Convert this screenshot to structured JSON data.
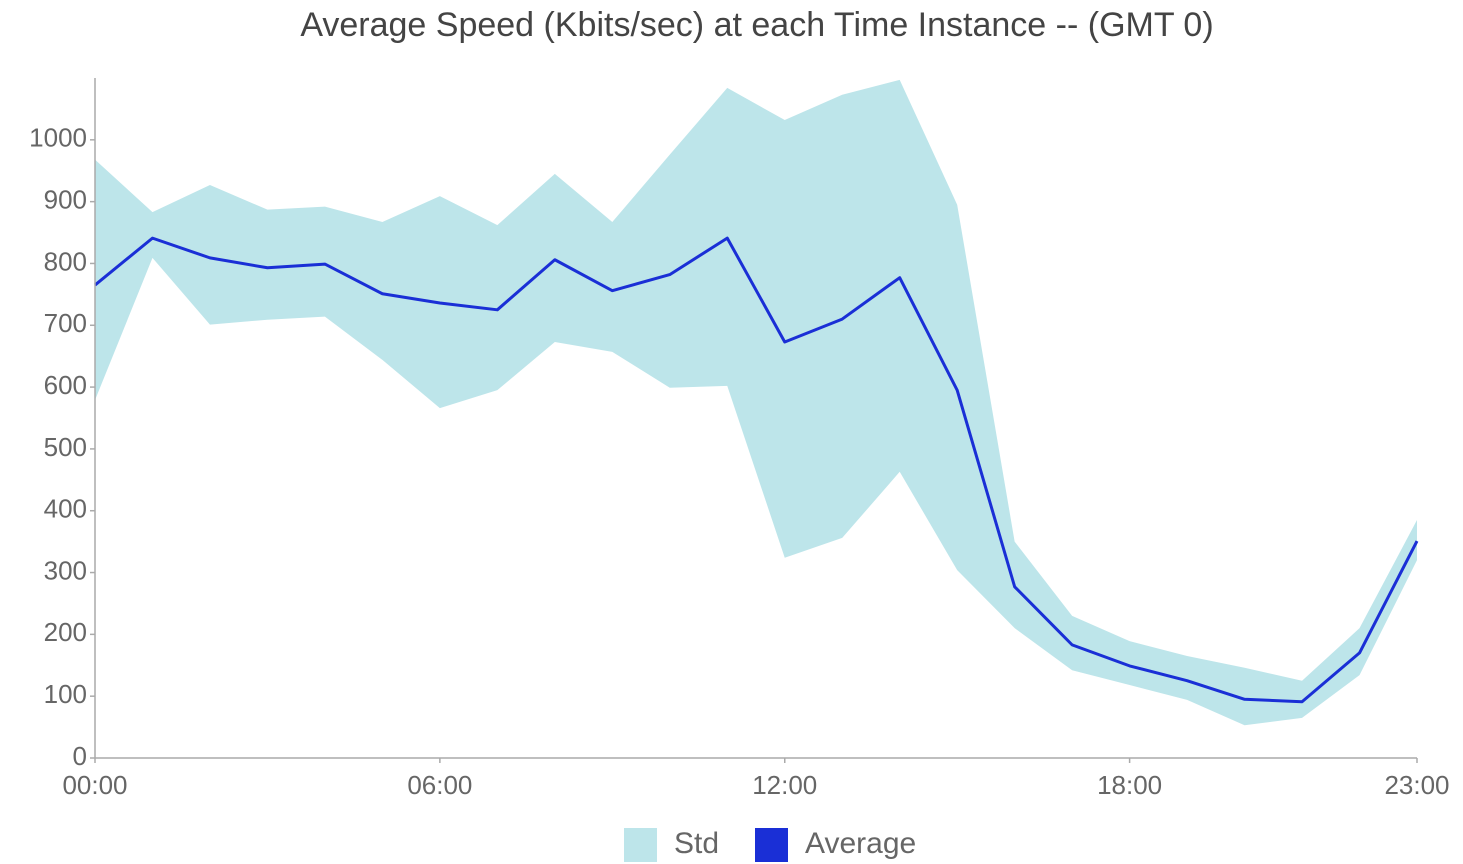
{
  "chart_data": {
    "type": "line",
    "title": "Average Speed (Kbits/sec) at each Time Instance -- (GMT 0)",
    "categories": [
      "00:00",
      null,
      null,
      null,
      null,
      null,
      "06:00",
      null,
      null,
      null,
      null,
      null,
      "12:00",
      null,
      null,
      null,
      null,
      null,
      "18:00",
      null,
      null,
      null,
      null,
      "23:00"
    ],
    "series": [
      {
        "name": "Std",
        "type": "band",
        "color": "#bde5ea",
        "high": [
          968,
          883,
          927,
          887,
          892,
          867,
          909,
          862,
          945,
          867,
          976,
          1084,
          1032,
          1073,
          1097,
          895,
          350,
          230,
          189,
          165,
          146,
          125,
          210,
          385
        ],
        "low": [
          579,
          809,
          701,
          709,
          714,
          644,
          566,
          595,
          673,
          657,
          599,
          602,
          324,
          356,
          463,
          304,
          210,
          142,
          118,
          94,
          53,
          65,
          134,
          320
        ]
      },
      {
        "name": "Average",
        "color": "#1a2fd6",
        "values": [
          765,
          841,
          809,
          793,
          799,
          751,
          736,
          725,
          806,
          756,
          782,
          841,
          673,
          710,
          777,
          595,
          277,
          183,
          149,
          125,
          95,
          91,
          170,
          351
        ]
      }
    ],
    "ylim": [
      0,
      1100
    ],
    "yticks": [
      0,
      100,
      200,
      300,
      400,
      500,
      600,
      700,
      800,
      900,
      1000
    ],
    "grid": false,
    "legend": "bottom"
  }
}
